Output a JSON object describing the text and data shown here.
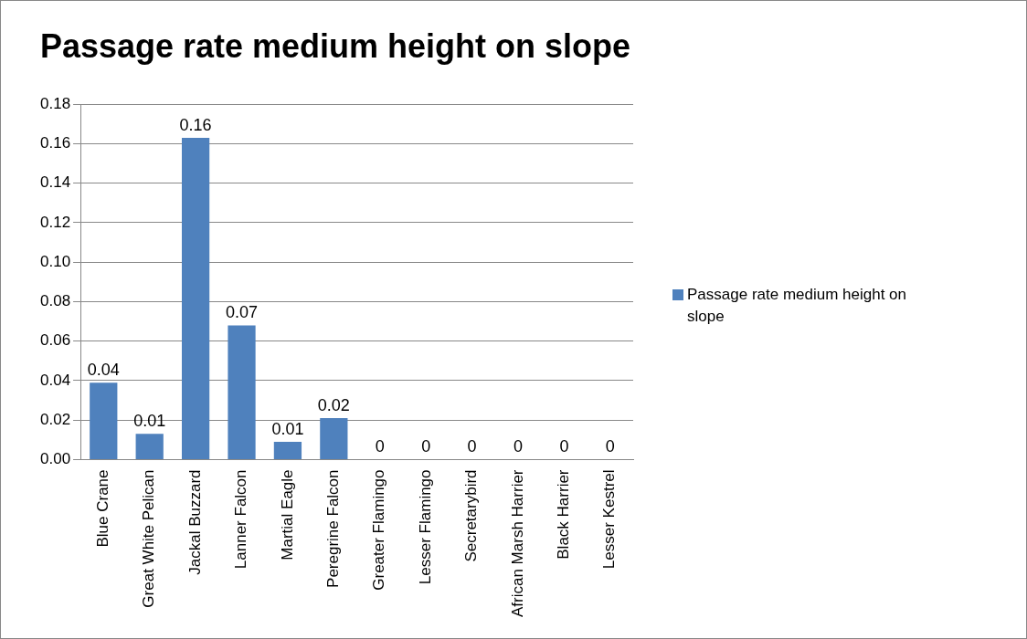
{
  "chart_data": {
    "type": "bar",
    "title": "Passage rate medium height on slope",
    "categories": [
      "Blue Crane",
      "Great White Pelican",
      "Jackal Buzzard",
      "Lanner Falcon",
      "Martial Eagle",
      "Peregrine Falcon",
      "Greater Flamingo",
      "Lesser Flamingo",
      "Secretarybird",
      "African Marsh Harrier",
      "Black Harrier",
      "Lesser Kestrel"
    ],
    "series": [
      {
        "name": "Passage rate medium height on slope",
        "color": "#4f81bd",
        "values": [
          0.039,
          0.013,
          0.163,
          0.068,
          0.009,
          0.021,
          0,
          0,
          0,
          0,
          0,
          0
        ],
        "value_labels": [
          "0.04",
          "0.01",
          "0.16",
          "0.07",
          "0.01",
          "0.02",
          "0",
          "0",
          "0",
          "0",
          "0",
          "0"
        ]
      }
    ],
    "ylim": [
      0,
      0.18
    ],
    "yticks": [
      {
        "value": 0,
        "label": "0.00"
      },
      {
        "value": 0.02,
        "label": "0.02"
      },
      {
        "value": 0.04,
        "label": "0.04"
      },
      {
        "value": 0.06,
        "label": "0.06"
      },
      {
        "value": 0.08,
        "label": "0.08"
      },
      {
        "value": 0.1,
        "label": "0.10"
      },
      {
        "value": 0.12,
        "label": "0.12"
      },
      {
        "value": 0.14,
        "label": "0.14"
      },
      {
        "value": 0.16,
        "label": "0.16"
      },
      {
        "value": 0.18,
        "label": "0.18"
      }
    ],
    "grid": "y",
    "legend": "right"
  }
}
